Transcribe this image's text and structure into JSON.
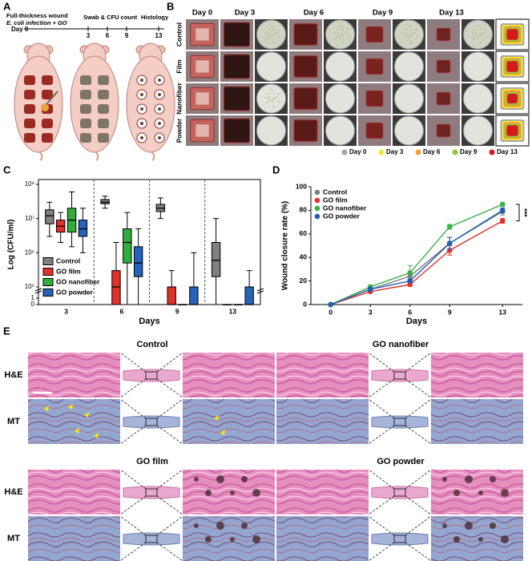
{
  "panel_a": {
    "label": "A",
    "line1": "Full-thickness wound",
    "line2": "E. coli infection + GO",
    "swab": "Swab & CFU count",
    "histology": "Histology",
    "timeline": [
      "Day 0",
      "3",
      "6",
      "9",
      "13"
    ]
  },
  "panel_b": {
    "label": "B",
    "columns": [
      "Day 0",
      "Day 3",
      "Day 6",
      "Day 9",
      "Day 13"
    ],
    "rows": [
      "Control",
      "Film",
      "Nanofiber",
      "Powder"
    ],
    "legend": [
      {
        "name": "Day 0",
        "color": "#a6a6a6"
      },
      {
        "name": "Day 3",
        "color": "#f2e43a"
      },
      {
        "name": "Day 6",
        "color": "#f0a030"
      },
      {
        "name": "Day 9",
        "color": "#8cc63f"
      },
      {
        "name": "Day 13",
        "color": "#d7191c"
      }
    ]
  },
  "chart_data": [
    {
      "type": "box",
      "panel_label": "C",
      "ylabel": "Log (CFU/ml)",
      "xlabel": "Days",
      "categories": [
        "3",
        "6",
        "9",
        "13"
      ],
      "log_scale": true,
      "legend": "lower left",
      "ylim": [
        0,
        100000000
      ],
      "yticks": [
        0,
        1,
        {
          "value": 100000,
          "label": "10⁵"
        },
        {
          "value": 1000000,
          "label": "10⁶"
        },
        {
          "value": 10000000,
          "label": "10⁷"
        },
        {
          "value": 100000000,
          "label": "10⁸"
        }
      ],
      "series": [
        {
          "name": "Control",
          "color": "#808080",
          "boxes": [
            {
              "min": 3000000,
              "q1": 7000000,
              "median": 12000000,
              "q3": 18000000,
              "max": 30000000
            },
            {
              "min": 20000000,
              "q1": 27000000,
              "median": 30000000,
              "q3": 36000000,
              "max": 45000000
            },
            {
              "min": 10000000,
              "q1": 16000000,
              "median": 20000000,
              "q3": 26000000,
              "max": 40000000
            },
            {
              "min": 0,
              "q1": 200000,
              "median": 600000,
              "q3": 2000000,
              "max": 10000000
            }
          ]
        },
        {
          "name": "GO film",
          "color": "#e0312b",
          "boxes": [
            {
              "min": 2000000,
              "q1": 4000000,
              "median": 6000000,
              "q3": 9000000,
              "max": 15000000
            },
            {
              "min": 0,
              "q1": 0,
              "median": 100000,
              "q3": 300000,
              "max": 2000000
            },
            {
              "min": 0,
              "q1": 0,
              "median": 0,
              "q3": 100000,
              "max": 300000
            },
            {
              "min": 0,
              "q1": 0,
              "median": 0,
              "q3": 0,
              "max": 0
            }
          ]
        },
        {
          "name": "GO nanofiber",
          "color": "#2fae3c",
          "boxes": [
            {
              "min": 1500000,
              "q1": 4000000,
              "median": 9000000,
              "q3": 20000000,
              "max": 60000000
            },
            {
              "min": 0,
              "q1": 500000,
              "median": 2000000,
              "q3": 5000000,
              "max": 15000000
            },
            {
              "min": 0,
              "q1": 0,
              "median": 0,
              "q3": 0,
              "max": 0
            },
            {
              "min": 0,
              "q1": 0,
              "median": 0,
              "q3": 0,
              "max": 0
            }
          ]
        },
        {
          "name": "GO powder",
          "color": "#2563b8",
          "boxes": [
            {
              "min": 1000000,
              "q1": 3000000,
              "median": 5000000,
              "q3": 9000000,
              "max": 20000000
            },
            {
              "min": 0,
              "q1": 200000,
              "median": 500000,
              "q3": 1500000,
              "max": 5000000
            },
            {
              "min": 0,
              "q1": 0,
              "median": 0,
              "q3": 100000,
              "max": 1000000
            },
            {
              "min": 0,
              "q1": 0,
              "median": 0,
              "q3": 100000,
              "max": 300000
            }
          ]
        }
      ]
    },
    {
      "type": "line",
      "panel_label": "D",
      "ylabel": "Wound closure rate (%)",
      "xlabel": "Days",
      "legend": "upper left",
      "annotation": "***",
      "x": [
        0,
        3,
        6,
        9,
        13
      ],
      "xlim": [
        -1.5,
        14.5
      ],
      "xticks": [
        0,
        3,
        6,
        9,
        13
      ],
      "ylim": [
        0,
        100
      ],
      "yticks": [
        0,
        20,
        40,
        60,
        80,
        100
      ],
      "series": [
        {
          "name": "Control",
          "color": "#808080",
          "values": [
            0,
            13,
            24,
            52,
            79
          ],
          "errors": [
            0,
            1.5,
            3,
            5,
            3
          ]
        },
        {
          "name": "GO film",
          "color": "#e0312b",
          "values": [
            0,
            11,
            17,
            46,
            71
          ],
          "errors": [
            0,
            1,
            1.5,
            4,
            2
          ]
        },
        {
          "name": "GO nanofiber",
          "color": "#3db04a",
          "values": [
            0,
            15,
            27,
            66,
            85
          ],
          "errors": [
            0,
            1.5,
            6,
            2,
            1.5
          ]
        },
        {
          "name": "GO powder",
          "color": "#1f5fb4",
          "values": [
            0,
            13,
            20,
            52,
            80
          ],
          "errors": [
            0,
            1.5,
            1.5,
            5,
            2
          ]
        }
      ]
    }
  ],
  "panel_e": {
    "label": "E",
    "groups": [
      "Control",
      "GO nanofiber",
      "GO film",
      "GO powder"
    ],
    "stains": [
      "H&E",
      "MT"
    ]
  }
}
